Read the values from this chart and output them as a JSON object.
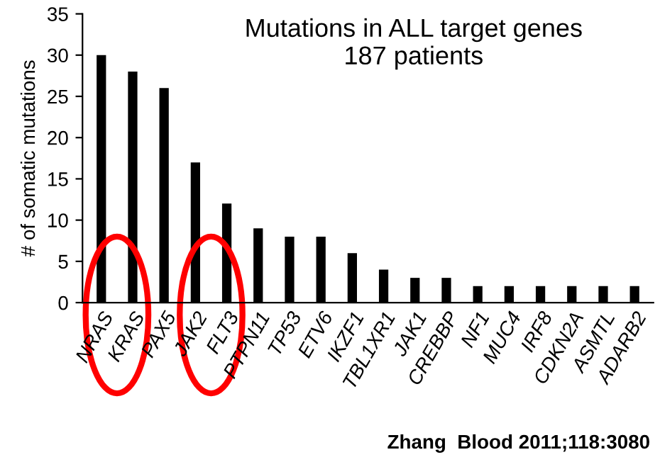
{
  "chart_data": {
    "type": "bar",
    "title": "Mutations in ALL target genes\n187 patients",
    "ylabel": "# of somatic mutations",
    "categories": [
      "NRAS",
      "KRAS",
      "PAX5",
      "JAK2",
      "FLT3",
      "PTPN11",
      "TP53",
      "ETV6",
      "IKZF1",
      "TBL1XR1",
      "JAK1",
      "CREBBP",
      "NF1",
      "MUC4",
      "IRF8",
      "CDKN2A",
      "ASMTL",
      "ADARB2"
    ],
    "values": [
      30,
      28,
      26,
      17,
      12,
      9,
      8,
      8,
      6,
      4,
      3,
      3,
      2,
      2,
      2,
      2,
      2,
      2
    ],
    "color": "#000000",
    "ylim": [
      0,
      35
    ],
    "yticks": [
      0,
      5,
      10,
      15,
      20,
      25,
      30,
      35
    ],
    "grid": false,
    "annotations": [
      "Zhang  Blood 2011;118:3080"
    ]
  }
}
